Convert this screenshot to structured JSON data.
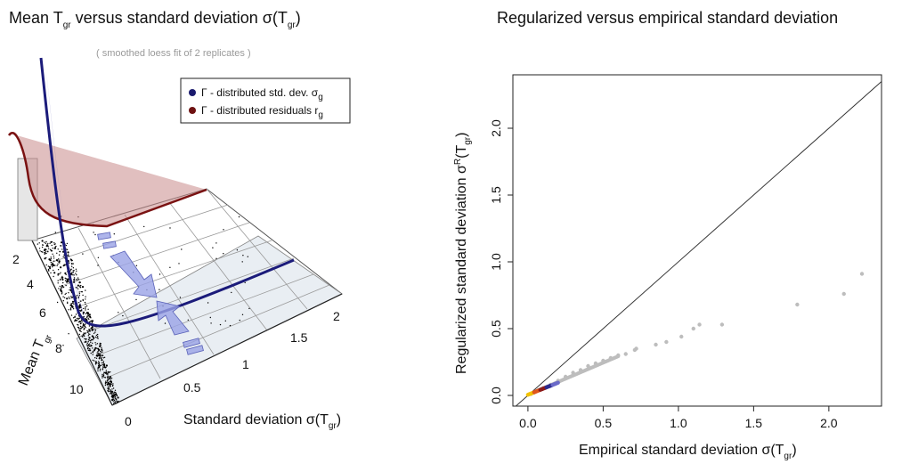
{
  "left_panel": {
    "title_main": "Mean  T",
    "title_sub": "gr",
    "title_rest": "  versus standard deviation  σ(T",
    "title_sub2": "gr",
    "title_end": ")",
    "subtitle": "( smoothed loess fit of  2  replicates )",
    "legend": [
      {
        "prefix": "Γ - distributed std. dev.  σ",
        "sub": "g",
        "color": "#1a1a6e"
      },
      {
        "prefix": "Γ - distributed residuals  r",
        "sub": "g",
        "color": "#6e1111"
      }
    ],
    "y_label_main": "Mean  T",
    "y_label_sub": "gr",
    "y_ticks": [
      "2",
      "4",
      "6",
      "8",
      "10"
    ],
    "x_label_main": "Standard deviation  σ(T",
    "x_label_sub": "gr",
    "x_label_end": ")",
    "x_ticks": [
      "0",
      "0.5",
      "1",
      "1.5",
      "2"
    ]
  },
  "chart_data": [
    {
      "type": "scatter",
      "title": "Regularized versus empirical standard deviation",
      "xlabel": "Empirical standard deviation  σ(Tgr)",
      "ylabel": "Regularized standard deviation  σR(Tgr)",
      "xlim": [
        -0.1,
        2.35
      ],
      "ylim": [
        -0.08,
        2.4
      ],
      "x_ticks": [
        "0.0",
        "0.5",
        "1.0",
        "1.5",
        "2.0"
      ],
      "y_ticks": [
        "0.0",
        "0.5",
        "1.0",
        "1.5",
        "2.0"
      ],
      "identity_line": true,
      "points_color": "#bdbdbd",
      "points": [
        {
          "x": 2.22,
          "y": 0.91
        },
        {
          "x": 2.1,
          "y": 0.76
        },
        {
          "x": 1.79,
          "y": 0.68
        },
        {
          "x": 1.29,
          "y": 0.53
        },
        {
          "x": 1.14,
          "y": 0.53
        },
        {
          "x": 1.1,
          "y": 0.5
        },
        {
          "x": 1.02,
          "y": 0.44
        },
        {
          "x": 0.92,
          "y": 0.4
        },
        {
          "x": 0.85,
          "y": 0.38
        },
        {
          "x": 0.72,
          "y": 0.35
        },
        {
          "x": 0.71,
          "y": 0.34
        },
        {
          "x": 0.65,
          "y": 0.31
        },
        {
          "x": 0.6,
          "y": 0.3
        },
        {
          "x": 0.55,
          "y": 0.28
        },
        {
          "x": 0.5,
          "y": 0.26
        },
        {
          "x": 0.45,
          "y": 0.24
        },
        {
          "x": 0.4,
          "y": 0.22
        },
        {
          "x": 0.35,
          "y": 0.19
        },
        {
          "x": 0.3,
          "y": 0.17
        },
        {
          "x": 0.25,
          "y": 0.14
        },
        {
          "x": 0.2,
          "y": 0.11
        },
        {
          "x": 0.15,
          "y": 0.08
        },
        {
          "x": 0.1,
          "y": 0.055
        },
        {
          "x": 0.07,
          "y": 0.04
        },
        {
          "x": 0.04,
          "y": 0.02
        },
        {
          "x": 0.02,
          "y": 0.01
        }
      ],
      "density_colors": [
        "#f2c200",
        "#e0561c",
        "#8b1a1a",
        "#2b2b8f",
        "#6a6ac8"
      ]
    }
  ]
}
